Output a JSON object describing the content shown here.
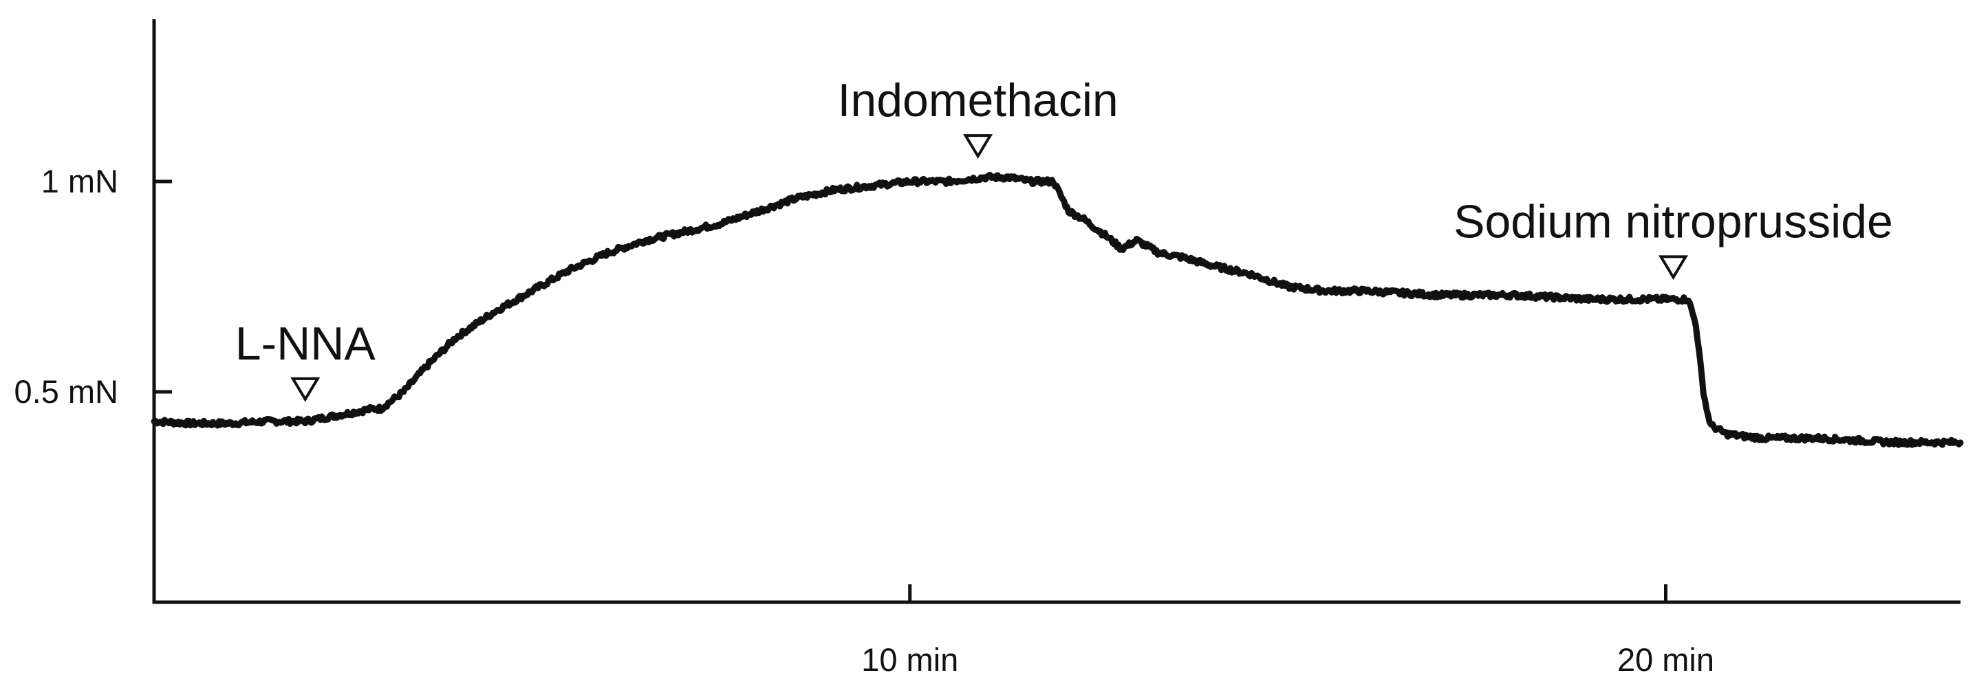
{
  "chart_data": {
    "type": "line",
    "title": "",
    "xlabel": "",
    "ylabel": "",
    "x_unit": "min",
    "xlim": [
      0,
      23.9
    ],
    "ylim": [
      0,
      1.4
    ],
    "grid": false,
    "x_ticks": [
      {
        "value": 10,
        "label": "10 min"
      },
      {
        "value": 20,
        "label": "20 min"
      }
    ],
    "y_ticks": [
      {
        "value": 0.5,
        "label": "0.5 mN"
      },
      {
        "value": 1.0,
        "label": "1 mN"
      }
    ],
    "events": [
      {
        "label": "L-NNA",
        "time": 2.0
      },
      {
        "label": "Indomethacin",
        "time": 10.9
      },
      {
        "label": "Sodium nitroprusside",
        "time": 20.1
      }
    ],
    "series": [
      {
        "name": "",
        "x": [
          0,
          0.5,
          1.0,
          1.5,
          2.0,
          2.3,
          2.6,
          2.9,
          3.0,
          3.3,
          3.6,
          4.0,
          4.5,
          5.0,
          5.5,
          6.0,
          6.5,
          7.0,
          7.5,
          8.0,
          8.5,
          9.0,
          9.5,
          10.0,
          10.5,
          11.0,
          11.3,
          11.6,
          11.9,
          12.1,
          12.3,
          12.6,
          12.8,
          13.0,
          13.3,
          13.6,
          14.0,
          14.5,
          15.0,
          15.5,
          16.0,
          17.0,
          18.0,
          19.0,
          19.5,
          20.0,
          20.3,
          20.4,
          20.45,
          20.5,
          20.55,
          20.6,
          20.7,
          20.8,
          21.0,
          21.3,
          21.5,
          22.0,
          22.5,
          23.0,
          23.5,
          23.9
        ],
        "y": [
          0.43,
          0.425,
          0.425,
          0.43,
          0.43,
          0.44,
          0.45,
          0.46,
          0.46,
          0.5,
          0.56,
          0.63,
          0.69,
          0.74,
          0.79,
          0.83,
          0.86,
          0.88,
          0.9,
          0.93,
          0.96,
          0.98,
          0.99,
          1.0,
          1.0,
          1.01,
          1.01,
          1.0,
          1.0,
          0.93,
          0.91,
          0.87,
          0.84,
          0.86,
          0.83,
          0.82,
          0.8,
          0.78,
          0.75,
          0.74,
          0.74,
          0.73,
          0.73,
          0.72,
          0.72,
          0.72,
          0.72,
          0.66,
          0.58,
          0.5,
          0.45,
          0.42,
          0.41,
          0.4,
          0.395,
          0.39,
          0.39,
          0.39,
          0.385,
          0.38,
          0.38,
          0.38
        ]
      }
    ]
  }
}
